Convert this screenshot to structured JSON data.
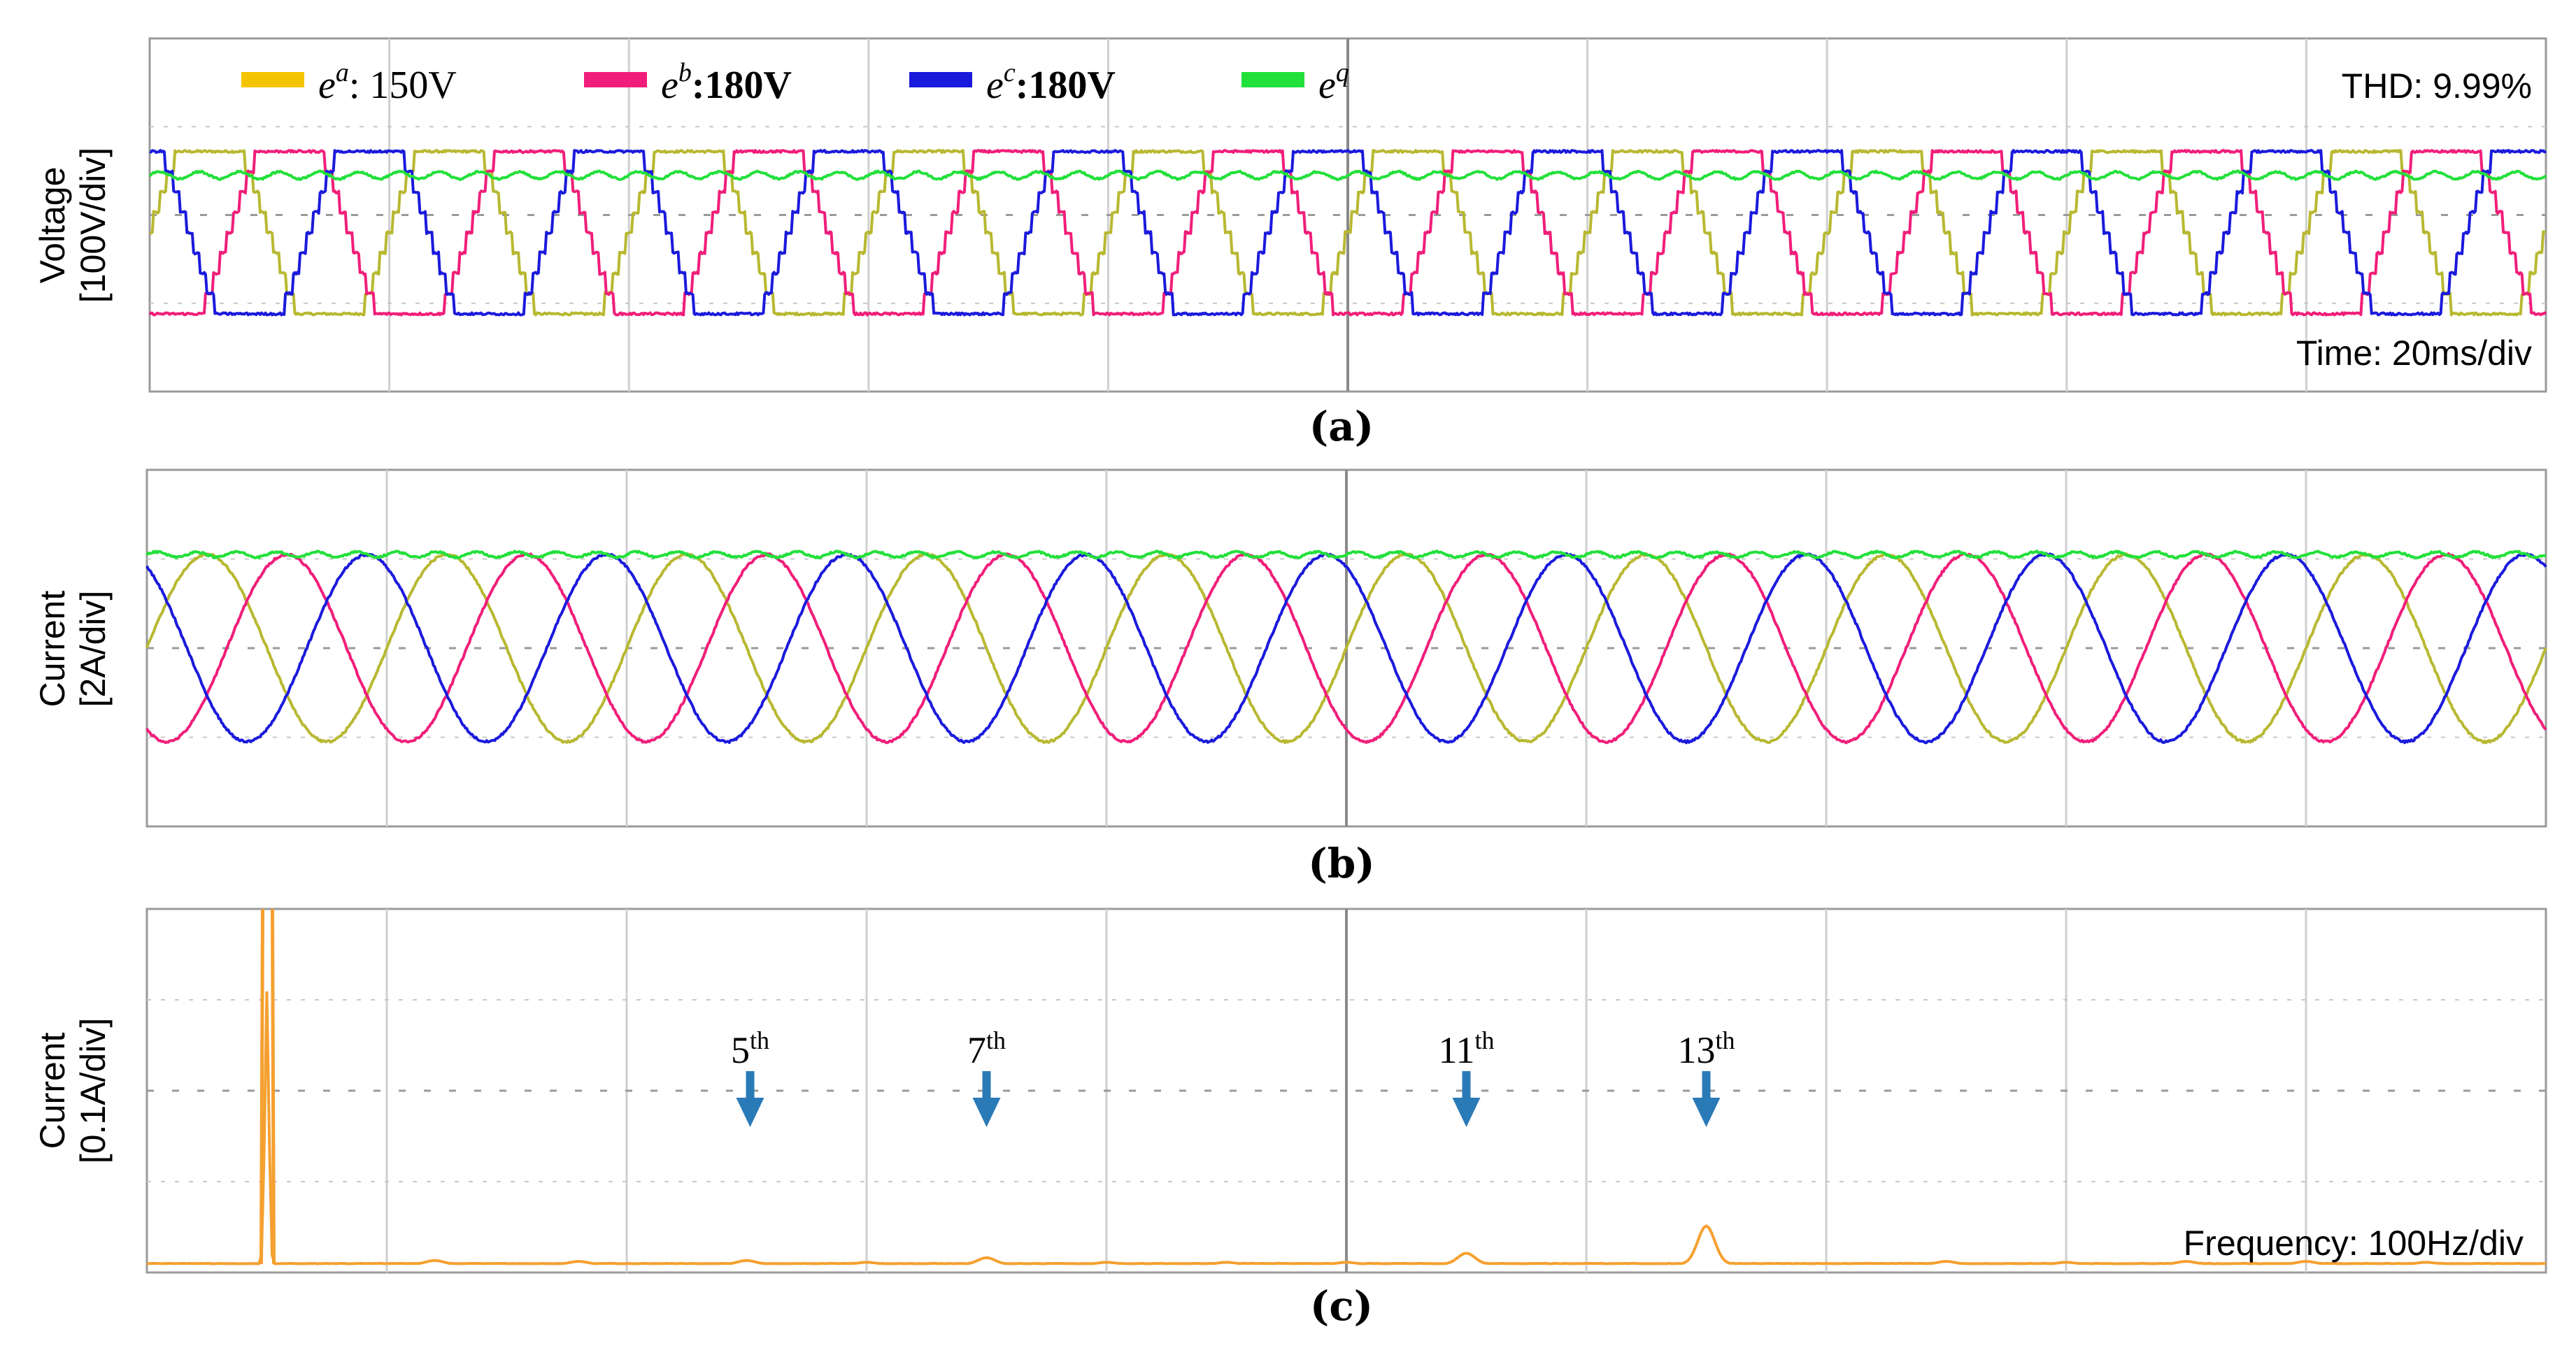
{
  "chart_data": [
    {
      "id": "a",
      "type": "line",
      "caption": "(a)",
      "ylabel_line1": "Voltage",
      "ylabel_line2": "[100V/div]",
      "info_right_top": "THD: 9.99%",
      "info_right_bottom": "Time: 20ms/div",
      "grid": true,
      "legend": {
        "placement": "top",
        "entries": [
          {
            "base": "e",
            "sup": "a",
            "suffix": ": 150V",
            "color": "#f5c400"
          },
          {
            "base": "e",
            "sup": "b",
            "suffix": ":180V",
            "color": "#f01e7a"
          },
          {
            "base": "e",
            "sup": "c",
            "suffix": ":180V",
            "color": "#1a1adc"
          },
          {
            "base": "e",
            "sup": "q",
            "suffix": "",
            "color": "#22e03a"
          }
        ]
      },
      "waveform": {
        "frequency_hz": 50,
        "time_per_div_ms": 20,
        "divisions_x": 10,
        "divisions_y": 4,
        "amplitude_div": 0.92,
        "dc_offset_div": -0.2,
        "shape": "stepped-trapezoid",
        "envelope_level_div": 0.45,
        "envelope_ripple_div": 0.04
      },
      "series": [
        {
          "name": "e^a",
          "phase_deg": 0,
          "color": "#b8b832"
        },
        {
          "name": "e^b",
          "phase_deg": -120,
          "color": "#f01e7a"
        },
        {
          "name": "e^c",
          "phase_deg": 120,
          "color": "#1a1adc"
        },
        {
          "name": "e^q",
          "color": "#22e03a",
          "kind": "envelope"
        }
      ]
    },
    {
      "id": "b",
      "type": "line",
      "caption": "(b)",
      "ylabel_line1": "Current",
      "ylabel_line2": "[2A/div]",
      "grid": true,
      "waveform": {
        "frequency_hz": 50,
        "time_per_div_ms": 20,
        "divisions_x": 10,
        "divisions_y": 4,
        "amplitude_div": 1.05,
        "dc_offset_div": 0,
        "shape": "sine",
        "envelope_level_div": 1.05,
        "envelope_ripple_div": 0.03
      },
      "series": [
        {
          "name": "i^a",
          "phase_deg": 0,
          "color": "#b8b832"
        },
        {
          "name": "i^b",
          "phase_deg": -120,
          "color": "#f01e7a"
        },
        {
          "name": "i^c",
          "phase_deg": 120,
          "color": "#1a1adc"
        },
        {
          "name": "i^q",
          "color": "#22e03a",
          "kind": "envelope"
        }
      ]
    },
    {
      "id": "c",
      "type": "line",
      "caption": "(c)",
      "ylabel_line1": "Current",
      "ylabel_line2": "[0.1A/div]",
      "info_right_bottom": "Frequency: 100Hz/div",
      "grid": true,
      "xlim_hz": [
        0,
        1000
      ],
      "color": "#f5a030",
      "spectrum": [
        {
          "f": 0,
          "v": 0.0
        },
        {
          "f": 50,
          "v": 3.0
        },
        {
          "f": 120,
          "v": 0.04
        },
        {
          "f": 180,
          "v": 0.03
        },
        {
          "f": 250,
          "v": 0.04
        },
        {
          "f": 300,
          "v": 0.02
        },
        {
          "f": 350,
          "v": 0.05
        },
        {
          "f": 400,
          "v": 0.02
        },
        {
          "f": 450,
          "v": 0.02
        },
        {
          "f": 500,
          "v": 0.02
        },
        {
          "f": 550,
          "v": 0.1
        },
        {
          "f": 650,
          "v": 0.02
        },
        {
          "f": 750,
          "v": 0.03
        },
        {
          "f": 800,
          "v": 0.02
        },
        {
          "f": 850,
          "v": 0.03
        },
        {
          "f": 900,
          "v": 0.03
        },
        {
          "f": 950,
          "v": 0.02
        }
      ],
      "harmonics": [
        {
          "order": 5,
          "label_num": "5",
          "label_sup": "th",
          "f": 250,
          "v": 0.04
        },
        {
          "order": 7,
          "label_num": "7",
          "label_sup": "th",
          "f": 350,
          "v": 0.07
        },
        {
          "order": 11,
          "label_num": "11",
          "label_sup": "th",
          "f": 550,
          "v": 0.12
        },
        {
          "order": 13,
          "label_num": "13",
          "label_sup": "th",
          "f": 650,
          "v": 0.42
        }
      ],
      "arrow_color": "#2a7ab8"
    }
  ]
}
